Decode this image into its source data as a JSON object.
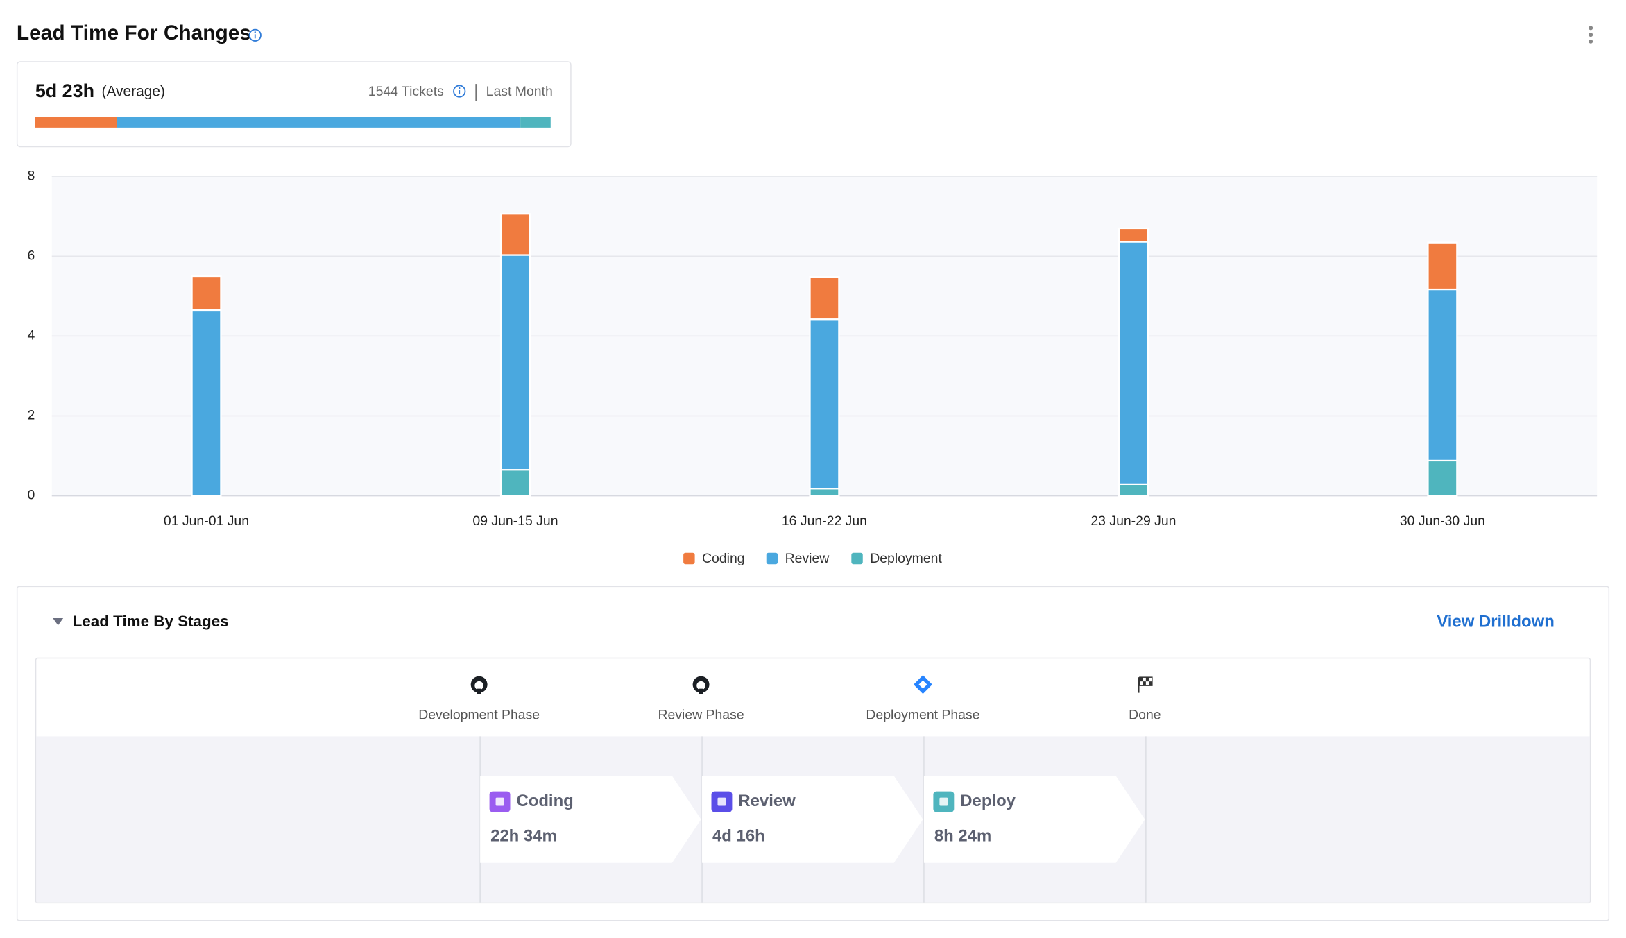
{
  "header": {
    "title": "Lead Time For Changes"
  },
  "summary": {
    "average": "5d 23h",
    "average_label": "(Average)",
    "tickets": "1544 Tickets",
    "period": "Last Month",
    "bar": {
      "values": [
        22.57,
        112,
        8.4
      ],
      "colors": [
        "#f07b3f",
        "#4aa8df",
        "#4fb5be"
      ]
    }
  },
  "chart_data": {
    "type": "bar",
    "stacked": true,
    "categories": [
      "01 Jun-01 Jun",
      "09 Jun-15 Jun",
      "16 Jun-22 Jun",
      "23 Jun-29 Jun",
      "30 Jun-30 Jun"
    ],
    "series": [
      {
        "name": "Coding",
        "color": "#f07b3f",
        "values": [
          0.85,
          1.03,
          1.06,
          0.34,
          1.17
        ]
      },
      {
        "name": "Review",
        "color": "#4aa8df",
        "values": [
          4.65,
          5.38,
          4.24,
          6.07,
          4.29
        ]
      },
      {
        "name": "Deployment",
        "color": "#4fb5be",
        "values": [
          0,
          0.65,
          0.18,
          0.29,
          0.88
        ]
      }
    ],
    "ylim": [
      0,
      8
    ],
    "yticks": [
      0,
      2,
      4,
      6,
      8
    ],
    "grid": true,
    "legend": "bottom"
  },
  "stages": {
    "title": "Lead Time By Stages",
    "action": "View Drilldown",
    "phases": [
      "Development Phase",
      "Review Phase",
      "Deployment Phase",
      "Done"
    ],
    "cards": [
      {
        "name": "Coding",
        "value": "22h 34m"
      },
      {
        "name": "Review",
        "value": "4d 16h"
      },
      {
        "name": "Deploy",
        "value": "8h 24m"
      }
    ]
  }
}
